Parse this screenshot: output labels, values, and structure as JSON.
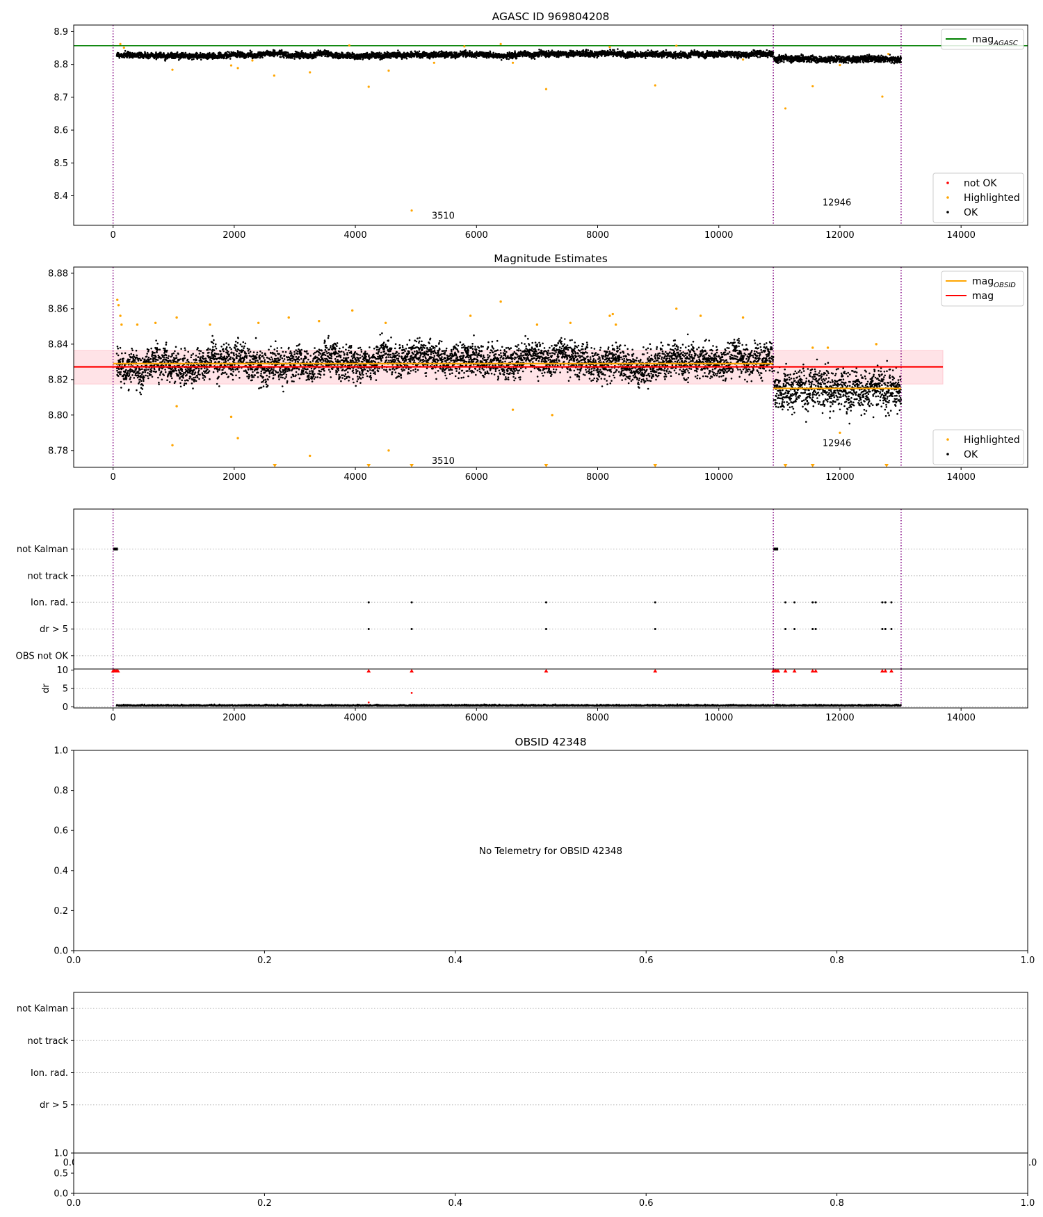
{
  "figure": {
    "background": "#ffffff"
  },
  "colors": {
    "ok": "#000000",
    "highlighted": "#ffa500",
    "not_ok": "#ff0000",
    "mag_agasc": "#008000",
    "mag_obsid": "#ffa500",
    "mag": "#ff0000",
    "mag_band": "#ffb6c1",
    "obsid_boundary": "#800080",
    "grid": "#b0b0b0"
  },
  "chart_data": [
    {
      "type": "scatter",
      "title": "AGASC ID 969804208",
      "xlim": [
        -650,
        15100
      ],
      "ylim": [
        8.31,
        8.92
      ],
      "xticks": [
        0,
        2000,
        4000,
        6000,
        8000,
        10000,
        12000,
        14000
      ],
      "yticks": [
        8.4,
        8.5,
        8.6,
        8.7,
        8.8,
        8.9
      ],
      "obsid_boundaries": [
        0,
        10900,
        13010
      ],
      "hlines": [
        {
          "name": "mag_AGASC",
          "legend_main": "mag",
          "legend_sub": "AGASC",
          "y": 8.857,
          "x_start": -650,
          "x_end": 15100,
          "color": "#008000"
        }
      ],
      "segments": [
        {
          "x_start": 60,
          "x_end": 10900,
          "center": 8.829,
          "drift": 0.004,
          "spread": 0.006
        },
        {
          "x_start": 10910,
          "x_end": 13010,
          "center": 8.815,
          "drift": 0.0,
          "spread": 0.007
        }
      ],
      "highlighted_points": [
        [
          120,
          8.862
        ],
        [
          180,
          8.851
        ],
        [
          980,
          8.784
        ],
        [
          1950,
          8.797
        ],
        [
          2060,
          8.789
        ],
        [
          2300,
          8.812
        ],
        [
          2660,
          8.766
        ],
        [
          3250,
          8.776
        ],
        [
          3900,
          8.858
        ],
        [
          4220,
          8.732
        ],
        [
          4550,
          8.781
        ],
        [
          4930,
          8.355
        ],
        [
          5300,
          8.805
        ],
        [
          5800,
          8.855
        ],
        [
          6400,
          8.862
        ],
        [
          6600,
          8.805
        ],
        [
          7150,
          8.725
        ],
        [
          8200,
          8.853
        ],
        [
          8950,
          8.736
        ],
        [
          9300,
          8.857
        ],
        [
          10400,
          8.815
        ],
        [
          11100,
          8.666
        ],
        [
          11550,
          8.734
        ],
        [
          12000,
          8.798
        ],
        [
          12700,
          8.702
        ],
        [
          12800,
          8.832
        ]
      ],
      "not_ok_points": [],
      "annotations": [
        {
          "text": "3510",
          "x": 5450,
          "y": 8.33
        },
        {
          "text": "12946",
          "x": 11950,
          "y": 8.37
        }
      ],
      "legends": [
        {
          "entries": [
            {
              "marker": "line",
              "color": "#008000",
              "label_main": "mag",
              "label_sub": "AGASC"
            }
          ],
          "position": "upper-right"
        },
        {
          "entries": [
            {
              "marker": "dot",
              "color": "#ff0000",
              "label_main": "not OK",
              "label_sub": ""
            },
            {
              "marker": "dot",
              "color": "#ffa500",
              "label_main": "Highlighted",
              "label_sub": ""
            },
            {
              "marker": "dot",
              "color": "#000000",
              "label_main": "OK",
              "label_sub": ""
            }
          ],
          "position": "lower-right"
        }
      ]
    },
    {
      "type": "scatter",
      "title": "Magnitude Estimates",
      "xlim": [
        -650,
        15100
      ],
      "ylim": [
        8.7705,
        8.8835
      ],
      "xticks": [
        0,
        2000,
        4000,
        6000,
        8000,
        10000,
        12000,
        14000
      ],
      "yticks": [
        8.78,
        8.8,
        8.82,
        8.84,
        8.86,
        8.88
      ],
      "ytick_labels": [
        "8.78",
        "8.80",
        "8.82",
        "8.84",
        "8.86",
        "8.88"
      ],
      "obsid_boundaries": [
        0,
        10900,
        13010
      ],
      "hlines": [
        {
          "name": "mag_OBSID",
          "y": 8.829,
          "x_start": 0,
          "x_end": 10900,
          "color": "#ffa500"
        },
        {
          "name": "mag_OBSID",
          "y": 8.815,
          "x_start": 10900,
          "x_end": 13010,
          "color": "#ffa500"
        },
        {
          "name": "mag",
          "y": 8.8272,
          "x_start": -650,
          "x_end": 13700,
          "color": "#ff0000"
        }
      ],
      "band": {
        "y_low": 8.8175,
        "y_high": 8.8365,
        "x_start": -650,
        "x_end": 13700,
        "color": "#ffb6c1"
      },
      "segments": [
        {
          "x_start": 60,
          "x_end": 10900,
          "center": 8.829,
          "drift": 0.004,
          "spread": 0.0065
        },
        {
          "x_start": 10910,
          "x_end": 13010,
          "center": 8.815,
          "drift": 0.0,
          "spread": 0.008
        }
      ],
      "highlighted_points": [
        [
          70,
          8.865
        ],
        [
          90,
          8.862
        ],
        [
          120,
          8.856
        ],
        [
          140,
          8.851
        ],
        [
          400,
          8.851
        ],
        [
          700,
          8.852
        ],
        [
          1050,
          8.855
        ],
        [
          1600,
          8.851
        ],
        [
          2400,
          8.852
        ],
        [
          2900,
          8.855
        ],
        [
          3400,
          8.853
        ],
        [
          3950,
          8.859
        ],
        [
          4500,
          8.852
        ],
        [
          5900,
          8.856
        ],
        [
          6400,
          8.864
        ],
        [
          7000,
          8.851
        ],
        [
          7550,
          8.852
        ],
        [
          8200,
          8.856
        ],
        [
          8250,
          8.857
        ],
        [
          8300,
          8.851
        ],
        [
          9300,
          8.86
        ],
        [
          9700,
          8.856
        ],
        [
          10400,
          8.855
        ],
        [
          980,
          8.783
        ],
        [
          2060,
          8.787
        ],
        [
          3250,
          8.777
        ],
        [
          4550,
          8.78
        ],
        [
          1050,
          8.805
        ],
        [
          1950,
          8.799
        ],
        [
          6600,
          8.803
        ],
        [
          7250,
          8.8
        ],
        [
          11550,
          8.838
        ],
        [
          11800,
          8.838
        ],
        [
          12600,
          8.84
        ],
        [
          12000,
          8.79
        ]
      ],
      "clipped_markers": [
        2670,
        4220,
        4930,
        7150,
        8950,
        11100,
        11550,
        12770
      ],
      "annotations": [
        {
          "text": "3510",
          "x": 5450,
          "y": 8.7725
        },
        {
          "text": "12946",
          "x": 11950,
          "y": 8.7825
        }
      ],
      "legends": [
        {
          "entries": [
            {
              "marker": "line",
              "color": "#ffa500",
              "label_main": "mag",
              "label_sub": "OBSID"
            },
            {
              "marker": "line",
              "color": "#ff0000",
              "label_main": "mag",
              "label_sub": ""
            }
          ],
          "position": "upper-right"
        },
        {
          "entries": [
            {
              "marker": "dot",
              "color": "#ffa500",
              "label_main": "Highlighted",
              "label_sub": ""
            },
            {
              "marker": "dot",
              "color": "#000000",
              "label_main": "OK",
              "label_sub": ""
            }
          ],
          "position": "lower-right"
        }
      ]
    },
    {
      "type": "scatter",
      "title": "",
      "xlim": [
        -650,
        15100
      ],
      "ylim": [
        -0.5,
        5.5
      ],
      "categories": [
        "not Kalman",
        "not track",
        "Ion. rad.",
        "dr > 5",
        "OBS not OK"
      ],
      "obsid_boundaries": [
        0,
        10900,
        13010
      ],
      "flags": {
        "not Kalman": [
          [
            0,
            80
          ],
          [
            10900,
            10980
          ]
        ],
        "not track": [],
        "Ion. rad.": [
          4220,
          4930,
          7150,
          8950,
          11100,
          11250,
          11550,
          11600,
          12700,
          12750,
          12850
        ],
        "dr > 5": [
          4220,
          4930,
          7150,
          8950,
          11100,
          11250,
          11550,
          11600,
          12700,
          12750,
          12850
        ],
        "OBS not OK": []
      }
    },
    {
      "type": "scatter",
      "title": "",
      "ylabel": "dr",
      "xlim": [
        -650,
        15100
      ],
      "ylim": [
        -0.3,
        10.3
      ],
      "xticks": [
        0,
        2000,
        4000,
        6000,
        8000,
        10000,
        12000,
        14000
      ],
      "yticks": [
        0,
        5,
        10
      ],
      "obsid_boundaries": [
        0,
        10900,
        13010
      ],
      "clipped_markers": [
        0,
        20,
        40,
        60,
        80,
        10900,
        10920,
        10940,
        10960,
        10980,
        4220,
        4930,
        7150,
        8950,
        11100,
        11250,
        11550,
        11600,
        12700,
        12750,
        12850
      ],
      "points": [
        [
          4930,
          3.8
        ],
        [
          4220,
          1.2
        ]
      ]
    },
    {
      "type": "scatter",
      "title": "OBSID 42348",
      "xlim": [
        0,
        1
      ],
      "ylim": [
        0,
        1
      ],
      "xticks": [
        0,
        0.2,
        0.4,
        0.6,
        0.8,
        1
      ],
      "xtick_labels": [
        "0.0",
        "0.2",
        "0.4",
        "0.6",
        "0.8",
        "1.0"
      ],
      "yticks": [
        0,
        0.2,
        0.4,
        0.6,
        0.8,
        1
      ],
      "ytick_labels": [
        "0.0",
        "0.2",
        "0.4",
        "0.6",
        "0.8",
        "1.0"
      ],
      "message": "No Telemetry for OBSID 42348"
    },
    {
      "type": "scatter",
      "title": "",
      "xlim": [
        0,
        1
      ],
      "ylim": [
        -0.5,
        4.5
      ],
      "categories": [
        "not Kalman",
        "not track",
        "Ion. rad.",
        "dr > 5"
      ],
      "hidden_tick_labels": [
        "0.0",
        "1.0"
      ]
    },
    {
      "type": "scatter",
      "title": "",
      "xlim": [
        0,
        1
      ],
      "ylim": [
        0,
        1
      ],
      "xticks": [
        0,
        0.2,
        0.4,
        0.6,
        0.8,
        1
      ],
      "xtick_labels": [
        "0.0",
        "0.2",
        "0.4",
        "0.6",
        "0.8",
        "1.0"
      ],
      "yticks": [
        0,
        0.5,
        1
      ],
      "ytick_labels": [
        "0.0",
        "0.5",
        "1.0"
      ]
    }
  ]
}
